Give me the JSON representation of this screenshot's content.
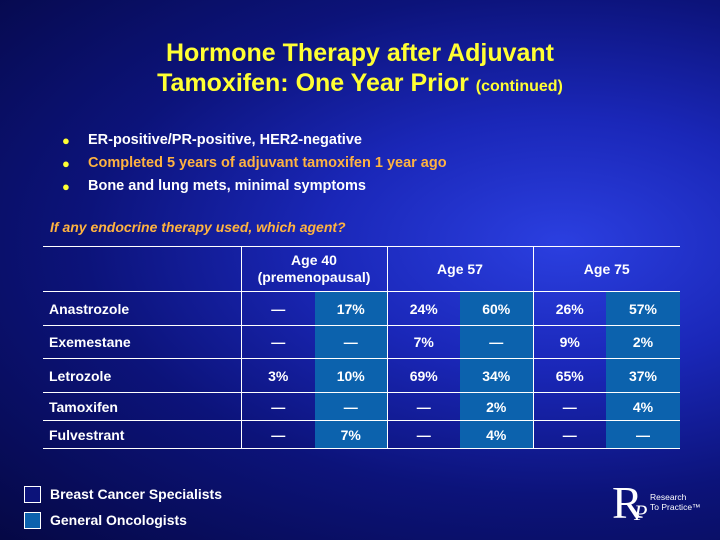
{
  "title": {
    "line1": "Hormone Therapy after Adjuvant",
    "line2": "Tamoxifen: One Year Prior",
    "suffix": "(continued)"
  },
  "bullets": [
    {
      "text": "ER-positive/PR-positive, HER2-negative",
      "color": "#ffffff"
    },
    {
      "text": "Completed 5 years of adjuvant tamoxifen 1 year ago",
      "color": "#ffb340"
    },
    {
      "text": "Bone and lung mets, minimal symptoms",
      "color": "#ffffff"
    }
  ],
  "question": "If any endocrine therapy used, which agent?",
  "table": {
    "groups": [
      {
        "line1": "Age 40",
        "line2": "(premenopausal)"
      },
      {
        "line1": "Age 57",
        "line2": ""
      },
      {
        "line1": "Age 75",
        "line2": ""
      }
    ],
    "rows": [
      {
        "agent": "Anastrozole",
        "values": [
          "—",
          "17%",
          "24%",
          "60%",
          "26%",
          "57%"
        ]
      },
      {
        "agent": "Exemestane",
        "values": [
          "—",
          "—",
          "7%",
          "—",
          "9%",
          "2%"
        ]
      },
      {
        "agent": "Letrozole",
        "values": [
          "3%",
          "10%",
          "69%",
          "34%",
          "65%",
          "37%"
        ]
      },
      {
        "agent": "Tamoxifen",
        "values": [
          "—",
          "—",
          "—",
          "2%",
          "—",
          "4%"
        ]
      },
      {
        "agent": "Fulvestrant",
        "values": [
          "—",
          "7%",
          "—",
          "4%",
          "—",
          "—"
        ]
      }
    ]
  },
  "legend": [
    {
      "label": "Breast Cancer Specialists",
      "color": "#0c137a"
    },
    {
      "label": "General Oncologists",
      "color": "#0c62ad"
    }
  ],
  "logo": {
    "letter_r": "R",
    "letter_p": "P",
    "line1": "Research",
    "line2": "To Practice™"
  },
  "colors": {
    "title": "#ffff33",
    "highlight": "#ffb340",
    "general_oncologists_fill": "#0c62ad"
  }
}
